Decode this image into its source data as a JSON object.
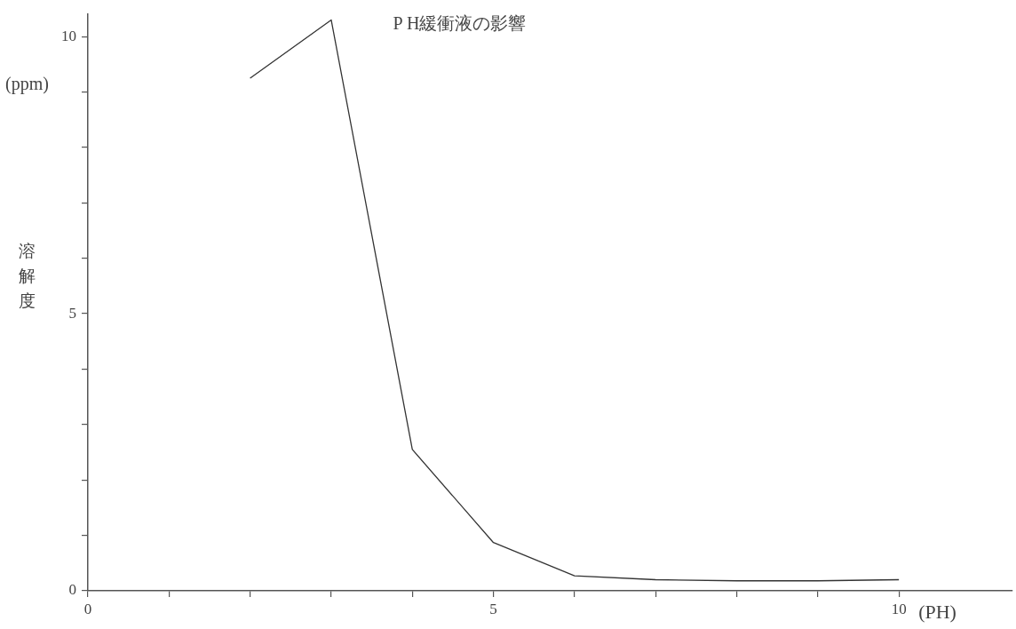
{
  "chart_data": {
    "type": "line",
    "title": "P H緩衝液の影響",
    "xlabel": "(PH)",
    "ylabel": "溶解度",
    "annotations": [
      "(ppm)"
    ],
    "x": [
      2,
      3,
      4,
      5,
      6,
      7,
      8,
      9,
      10
    ],
    "series": [
      {
        "color": "#333333",
        "values": [
          9.25,
          10.3,
          2.55,
          0.87,
          0.27,
          0.2,
          0.18,
          0.18,
          0.2
        ]
      }
    ],
    "xlim": [
      0,
      11.4
    ],
    "ylim": [
      0,
      10.4
    ],
    "xticks": [
      0,
      {
        "value": 1,
        "label": null
      },
      {
        "value": 2,
        "label": null
      },
      {
        "value": 3,
        "label": null
      },
      {
        "value": 4,
        "label": null
      },
      5,
      {
        "value": 6,
        "label": null
      },
      {
        "value": 7,
        "label": null
      },
      {
        "value": 8,
        "label": null
      },
      {
        "value": 9,
        "label": null
      },
      10
    ],
    "yticks": [
      0,
      {
        "value": 1,
        "label": null
      },
      {
        "value": 2,
        "label": null
      },
      {
        "value": 3,
        "label": null
      },
      {
        "value": 4,
        "label": null
      },
      5,
      {
        "value": 6,
        "label": null
      },
      {
        "value": 7,
        "label": null
      },
      {
        "value": 8,
        "label": null
      },
      {
        "value": 9,
        "label": null
      },
      10
    ],
    "grid": false,
    "legend": false,
    "marker": "none",
    "line_style": "solid"
  }
}
